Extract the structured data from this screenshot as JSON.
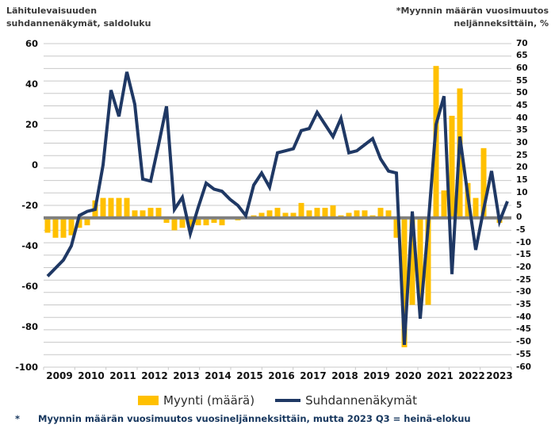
{
  "titles": {
    "left_line1": "Lähitulevaisuuden",
    "left_line2": "suhdannenäkymät, saldoluku",
    "right_line1": "*Myynnin määrän vuosimuutos",
    "right_line2": "neljänneksittäin, %"
  },
  "chart_data": {
    "type": "bar+line combo, dual axis, quarterly",
    "years": [
      "2009",
      "2010",
      "2011",
      "2012",
      "2013",
      "2014",
      "2015",
      "2016",
      "2017",
      "2018",
      "2019",
      "2020",
      "2021",
      "2022",
      "2023"
    ],
    "quarters_in_last_year": 3,
    "left_axis": {
      "label": "Lähitulevaisuuden suhdannenäkymät, saldoluku",
      "min": -100,
      "max": 60,
      "step": 20,
      "ticks": [
        60,
        40,
        20,
        0,
        -20,
        -40,
        -60,
        -80,
        -100
      ]
    },
    "right_axis": {
      "label": "Myynnin määrän vuosimuutos neljänneksittäin, %",
      "min": -60,
      "max": 70,
      "step": 5,
      "ticks": [
        70,
        65,
        60,
        55,
        50,
        45,
        40,
        35,
        30,
        25,
        20,
        15,
        10,
        5,
        0,
        -5,
        -10,
        -15,
        -20,
        -25,
        -30,
        -35,
        -40,
        -45,
        -50,
        -55,
        -60
      ]
    },
    "grid": "horizontal gridlines every 5 units of right axis",
    "zero_line": {
      "value": 0,
      "axis": "right",
      "color": "#7f7f7f"
    },
    "series": [
      {
        "name": "Myynti (määrä)",
        "type": "bar",
        "axis": "right",
        "color": "#FFC000",
        "values": [
          -6,
          -8,
          -8,
          -7,
          -4,
          -3,
          7,
          8,
          8,
          8,
          8,
          3,
          3,
          4,
          4,
          -2,
          -5,
          -4,
          -5,
          -3,
          -3,
          -2,
          -3,
          0,
          -1,
          0,
          1,
          2,
          3,
          4,
          2,
          2,
          6,
          3,
          4,
          4,
          5,
          1,
          2,
          3,
          3,
          1,
          4,
          3,
          -8,
          -52,
          -35,
          -35,
          -35,
          61,
          11,
          41,
          52,
          14,
          8,
          28,
          0,
          -2,
          0
        ]
      },
      {
        "name": "Suhdannenäkymät",
        "type": "line",
        "axis": "left",
        "color": "#1F3864",
        "values": [
          -55,
          -51,
          -47,
          -40,
          -25,
          -23,
          -22,
          0,
          37,
          24,
          46,
          30,
          -7,
          -8,
          10,
          29,
          -22,
          -16,
          -34,
          -21,
          -9,
          -12,
          -13,
          -17,
          -20,
          -25,
          -10,
          -4,
          -11,
          6,
          7,
          8,
          17,
          18,
          26,
          20,
          14,
          23,
          6,
          7,
          10,
          13,
          3,
          -3,
          -4,
          -89,
          -23,
          -76,
          -30,
          20,
          34,
          -54,
          14,
          -15,
          -42,
          -22,
          -3,
          -28,
          -18
        ]
      }
    ]
  },
  "legend": [
    {
      "label": "Myynti (määrä)",
      "swatch": "bar",
      "color": "#FFC000"
    },
    {
      "label": "Suhdannenäkymät",
      "swatch": "line",
      "color": "#1F3864"
    }
  ],
  "footnote": {
    "marker": "*",
    "text": "Myynnin määrän vuosimuutos vuosineljänneksittäin, mutta 2023 Q3 = heinä-elokuu"
  },
  "colors": {
    "bar": "#FFC000",
    "line": "#1F3864",
    "grid": "#c8c8c8",
    "zero_line": "#7f7f7f",
    "background": "#ffffff",
    "footnote": "#17375e"
  }
}
